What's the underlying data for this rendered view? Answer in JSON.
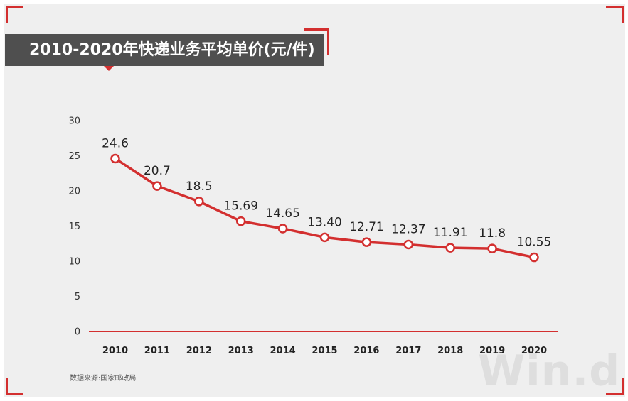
{
  "title": "2010-2020年快递业务平均单价(元/件)",
  "source": "数据来源:国家邮政局",
  "watermark": "Win.d",
  "colors": {
    "line": "#d32f2f",
    "title_bg": "#4f4f4f",
    "panel_bg": "#efefef"
  },
  "chart_data": {
    "type": "line",
    "title": "2010-2020年快递业务平均单价(元/件)",
    "xlabel": "",
    "ylabel": "",
    "categories": [
      "2010",
      "2011",
      "2012",
      "2013",
      "2014",
      "2015",
      "2016",
      "2017",
      "2018",
      "2019",
      "2020"
    ],
    "series": [
      {
        "name": "快递业务平均单价",
        "values": [
          24.6,
          20.7,
          18.5,
          15.69,
          14.65,
          13.4,
          12.71,
          12.37,
          11.91,
          11.8,
          10.55
        ],
        "labels": [
          "24.6",
          "20.7",
          "18.5",
          "15.69",
          "14.65",
          "13.40",
          "12.71",
          "12.37",
          "11.91",
          "11.8",
          "10.55"
        ]
      }
    ],
    "ylim": [
      0,
      30
    ],
    "yticks": [
      "0",
      "5",
      "10",
      "15",
      "20",
      "25",
      "30"
    ],
    "grid": false,
    "legend": "none"
  }
}
